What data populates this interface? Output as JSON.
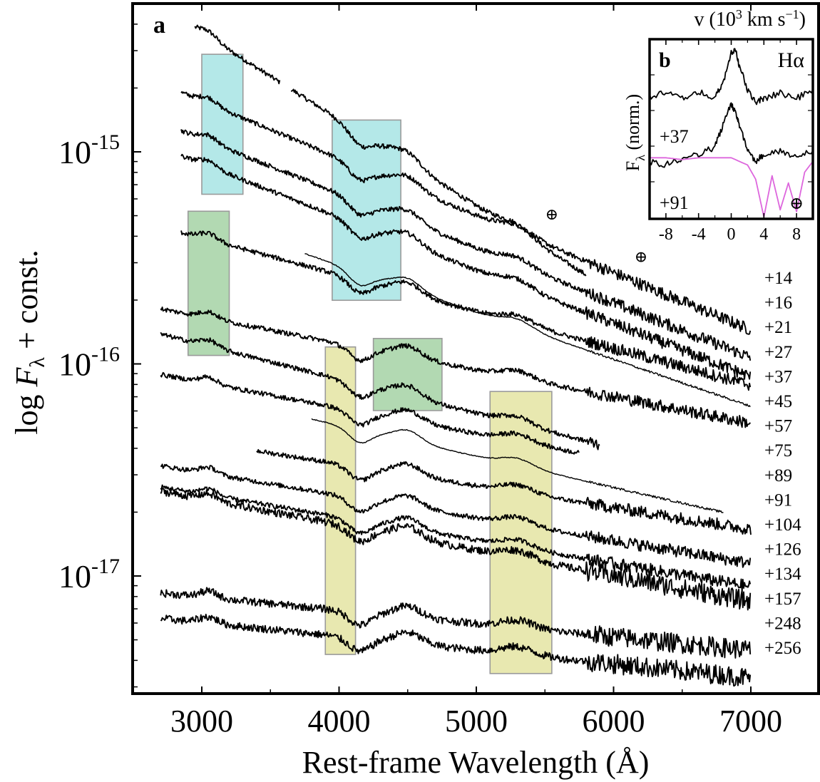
{
  "figure": {
    "panel_a_label": "a",
    "panel_b_label": "b",
    "xlabel": "Rest-frame Wavelength (Å)",
    "ylabel": "log F_λ + const.",
    "ylabel_parts": {
      "pre": "log ",
      "F": "F",
      "sub": "λ",
      "post": " + const."
    },
    "earth_symbol": "⊕"
  },
  "chart_data": [
    {
      "type": "line",
      "panel": "a",
      "xlabel": "Rest-frame Wavelength (Å)",
      "ylabel": "log F_λ + const.",
      "xlim": [
        2500,
        7500
      ],
      "ylim": [
        2e-18,
        5e-15
      ],
      "yscale": "log",
      "xticks": [
        "3000",
        "4000",
        "5000",
        "6000",
        "7000"
      ],
      "yticks": [
        {
          "base": "10",
          "exp": "-15",
          "value": 1e-15
        },
        {
          "base": "10",
          "exp": "-16",
          "value": 1e-16
        },
        {
          "base": "10",
          "exp": "-17",
          "value": 1e-17
        }
      ],
      "series": [
        {
          "name": "+14",
          "x_start": 2950,
          "x_end": 3570,
          "x_start2": 3650,
          "x_end2": 5800,
          "log_f_start": -14.42,
          "log_f_end": -15.58
        },
        {
          "name": "+16",
          "x_start": 2850,
          "x_end": 7000,
          "log_f_start": -14.72,
          "log_f_end": -15.84
        },
        {
          "name": "+21",
          "x_start": 2850,
          "x_end": 7000,
          "log_f_start": -14.9,
          "log_f_end": -15.97
        },
        {
          "name": "+27",
          "x_start": 2850,
          "x_end": 7000,
          "log_f_start": -15.02,
          "log_f_end": -16.06
        },
        {
          "name": "+37",
          "x_start": 2850,
          "x_end": 7000,
          "log_f_start": -15.38,
          "log_f_end": -16.1
        },
        {
          "name": "+45",
          "x_start": 3750,
          "x_end": 7000,
          "log_f_start": -15.48,
          "log_f_end": -16.2
        },
        {
          "name": "+57",
          "x_start": 2700,
          "x_end": 7000,
          "log_f_start": -15.74,
          "log_f_end": -16.28
        },
        {
          "name": "+75",
          "x_start": 2700,
          "x_end": 5900,
          "log_f_start": -15.86,
          "log_f_end": -16.38
        },
        {
          "name": "+89",
          "x_start": 2700,
          "x_end": 5750,
          "log_f_start": -16.05,
          "log_f_end": -16.42
        },
        {
          "name": "+91",
          "x_start": 3800,
          "x_end": 6800,
          "log_f_start": -16.26,
          "log_f_end": -16.7
        },
        {
          "name": "+104",
          "x_start": 3400,
          "x_end": 7000,
          "log_f_start": -16.41,
          "log_f_end": -16.78
        },
        {
          "name": "+126",
          "x_start": 2700,
          "x_end": 7000,
          "log_f_start": -16.48,
          "log_f_end": -16.94
        },
        {
          "name": "+134",
          "x_start": 2700,
          "x_end": 7000,
          "log_f_start": -16.58,
          "log_f_end": -17.05
        },
        {
          "name": "+157",
          "x_start": 2700,
          "x_end": 7000,
          "log_f_start": -16.6,
          "log_f_end": -17.12
        },
        {
          "name": "+248",
          "x_start": 2700,
          "x_end": 7000,
          "log_f_start": -17.08,
          "log_f_end": -17.35
        },
        {
          "name": "+256",
          "x_start": 2700,
          "x_end": 7000,
          "log_f_start": -17.2,
          "log_f_end": -17.48
        }
      ],
      "highlight_regions": [
        {
          "color": "#b4e8e8",
          "x0": 3000,
          "x1": 3300,
          "log_f_top": -14.54,
          "log_f_bottom": -15.2
        },
        {
          "color": "#b4e8e8",
          "x0": 3950,
          "x1": 4450,
          "log_f_top": -14.85,
          "log_f_bottom": -15.7
        },
        {
          "color": "#b2d9b2",
          "x0": 2900,
          "x1": 3200,
          "log_f_top": -15.28,
          "log_f_bottom": -15.96
        },
        {
          "color": "#b2d9b2",
          "x0": 4250,
          "x1": 4750,
          "log_f_top": -15.88,
          "log_f_bottom": -16.22
        },
        {
          "color": "#e8e8b0",
          "x0": 3900,
          "x1": 4120,
          "log_f_top": -15.92,
          "log_f_bottom": -17.37
        },
        {
          "color": "#e8e8b0",
          "x0": 5100,
          "x1": 5550,
          "log_f_top": -16.13,
          "log_f_bottom": -17.46
        }
      ],
      "annotations": [
        {
          "text": "⊕",
          "x": 5550,
          "log_f": -15.32
        },
        {
          "text": "⊕",
          "x": 6200,
          "log_f": -15.52
        }
      ]
    },
    {
      "type": "line",
      "panel": "b",
      "title": "Hα",
      "xlabel_parts": {
        "pre": "v (10",
        "sup": "3",
        "post": "  km s",
        "sup2": "−1",
        "end": ")"
      },
      "ylabel_parts": {
        "F": "F",
        "sub": "λ",
        "post": " (norm.)"
      },
      "xlim": [
        -10,
        10
      ],
      "xticks": [
        "-8",
        "-4",
        "0",
        "4",
        "8"
      ],
      "series": [
        {
          "name": "+37",
          "color": "#000000",
          "x": [
            -10,
            -8,
            -6,
            -4,
            -2,
            -1,
            0,
            0.5,
            1,
            2,
            3,
            4,
            6,
            8,
            10
          ],
          "y": [
            0.32,
            0.3,
            0.33,
            0.29,
            0.33,
            0.24,
            0.08,
            0.05,
            0.15,
            0.28,
            0.35,
            0.33,
            0.3,
            0.33,
            0.28
          ]
        },
        {
          "name": "+91",
          "color": "#000000",
          "x": [
            -10,
            -8,
            -6,
            -4,
            -2,
            -1,
            0,
            0.5,
            1,
            2,
            3,
            4,
            6,
            8,
            10
          ],
          "y": [
            0.68,
            0.7,
            0.66,
            0.64,
            0.6,
            0.48,
            0.36,
            0.4,
            0.48,
            0.62,
            0.68,
            0.64,
            0.62,
            0.66,
            0.62
          ]
        },
        {
          "name": "telluric",
          "color": "#dd66dd",
          "x": [
            -10,
            -8,
            -6,
            -4,
            -2,
            0,
            2,
            3,
            4,
            5,
            6,
            7,
            8,
            9,
            10
          ],
          "y": [
            0.66,
            0.66,
            0.67,
            0.66,
            0.66,
            0.66,
            0.7,
            0.78,
            0.99,
            0.76,
            0.95,
            0.8,
            0.96,
            0.74,
            0.68
          ]
        }
      ]
    }
  ]
}
